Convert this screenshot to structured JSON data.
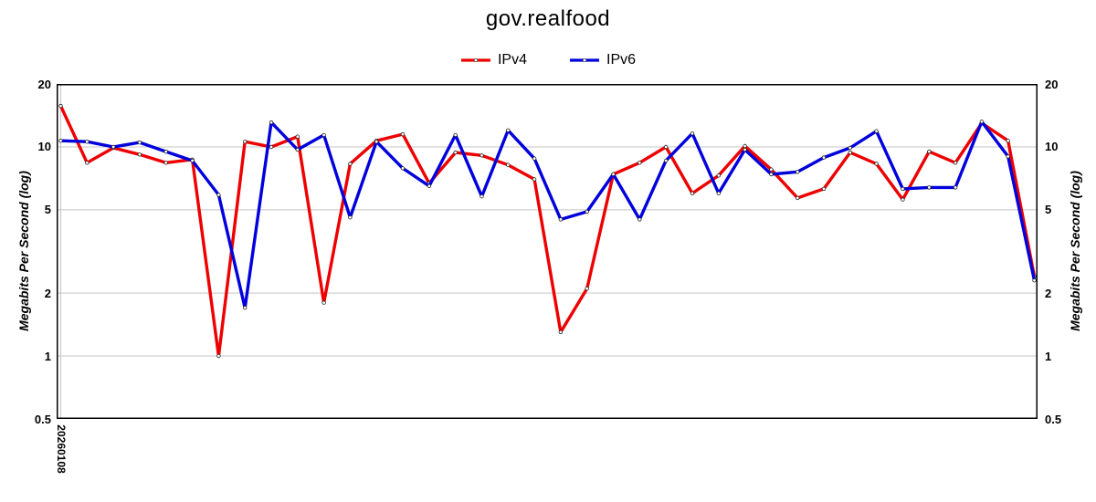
{
  "page": {
    "background": "#ffffff"
  },
  "chart_data": {
    "type": "line",
    "title": "gov.realfood",
    "y_axis_label_left": "Megabits Per Second (log)",
    "y_axis_label_right": "Megabits Per Second (log)",
    "y_scale": "log",
    "ylim": [
      0.5,
      20
    ],
    "y_ticks": [
      "20",
      "10",
      "5",
      "2",
      "1",
      "0.5"
    ],
    "y_tick_values": [
      20,
      10,
      5,
      2,
      1,
      0.5
    ],
    "y_grid_values": [
      10,
      5,
      2,
      1
    ],
    "x_tick_labels": [
      "20260108"
    ],
    "x_first_tick_index": 0,
    "x_point_count": 38,
    "grid_color": "#c4c4c4",
    "frame_color": "#000000",
    "legend_position": "top-center",
    "marker": "small-white-dot",
    "series": [
      {
        "name": "IPv4",
        "color": "#ee0000",
        "values": [
          15.7,
          8.4,
          9.9,
          9.2,
          8.4,
          8.7,
          1.0,
          10.6,
          10.0,
          11.2,
          1.8,
          8.3,
          10.7,
          11.5,
          6.7,
          9.4,
          9.1,
          8.2,
          7.0,
          1.3,
          2.1,
          7.4,
          8.4,
          10.0,
          6.0,
          7.3,
          10.1,
          7.8,
          5.7,
          6.3,
          9.4,
          8.3,
          5.6,
          9.5,
          8.4,
          13.0,
          10.7,
          2.4
        ]
      },
      {
        "name": "IPv6",
        "color": "#0000dd",
        "values": [
          10.7,
          10.6,
          10.0,
          10.5,
          9.5,
          8.6,
          5.9,
          1.7,
          13.1,
          9.7,
          11.4,
          4.6,
          10.6,
          7.9,
          6.5,
          11.4,
          5.8,
          12.0,
          8.8,
          4.5,
          4.9,
          7.4,
          4.5,
          8.6,
          11.6,
          6.0,
          9.7,
          7.4,
          7.6,
          8.9,
          9.9,
          11.9,
          6.3,
          6.4,
          6.4,
          13.2,
          9.0,
          2.3
        ]
      }
    ]
  }
}
